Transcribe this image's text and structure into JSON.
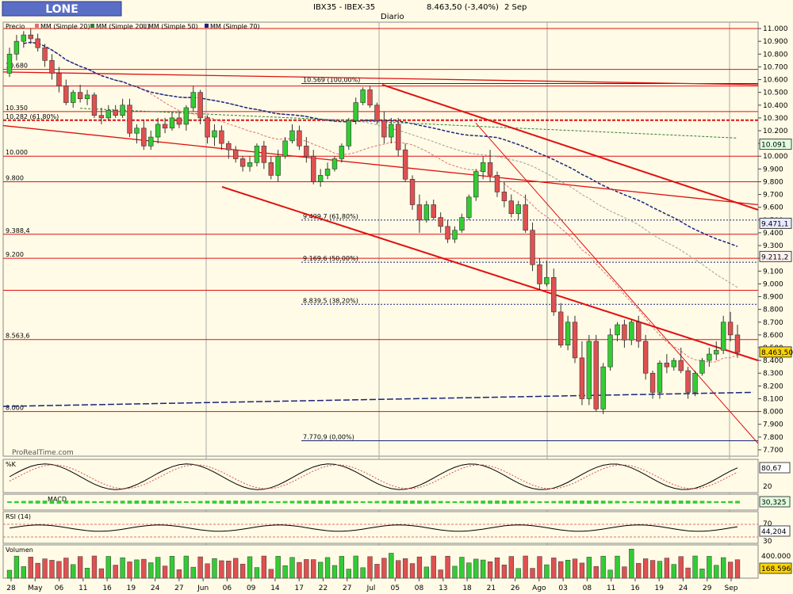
{
  "header": {
    "logo_text": "LONE",
    "title": "IBX35 - IBEX-35",
    "last_value": "8.463,50 (-3,40%)",
    "date": "2 Sep",
    "period": "Diario",
    "watermark": "ProRealTime.com"
  },
  "legend": {
    "price": "Precio",
    "ma20": "MM (Simple 20)",
    "ma200": "MM (Simple 200)",
    "ma50": "MM (Simple 50)",
    "ma70": "MM (Simple 70)"
  },
  "colors": {
    "background": "#fffbe6",
    "up_candle": "#33cc33",
    "down_candle": "#e05050",
    "trendline": "#e01010",
    "ma70": "#1a237e",
    "ma200": "#2e7d32",
    "ma50": "#9e9e9e",
    "ma20": "#e07070",
    "fib_line": "#1a237e"
  },
  "chart_data": {
    "type": "candlestick",
    "y_axis_ticks": [
      "11.000",
      "10.900",
      "10.800",
      "10.700",
      "10.600",
      "10.500",
      "10.400",
      "10.300",
      "10.200",
      "10.100",
      "10.000",
      "9.900",
      "9.800",
      "9.700",
      "9.600",
      "9.500",
      "9.400",
      "9.300",
      "9.200",
      "9.100",
      "9.000",
      "8.900",
      "8.800",
      "8.700",
      "8.600",
      "8.500",
      "8.400",
      "8.300",
      "8.200",
      "8.100",
      "8.000",
      "7.900",
      "7.800",
      "7.700"
    ],
    "ylim": [
      7650,
      11050
    ],
    "x_axis_labels": [
      "28",
      "May",
      "06",
      "11",
      "16",
      "19",
      "24",
      "27",
      "Jun",
      "06",
      "09",
      "14",
      "17",
      "22",
      "27",
      "Jul",
      "05",
      "08",
      "13",
      "18",
      "21",
      "26",
      "Ago",
      "03",
      "08",
      "11",
      "16",
      "19",
      "24",
      "29",
      "Sep"
    ],
    "horizontal_level_labels": [
      "10.680",
      "10.350",
      "10.282 (61,80%)",
      "10.000",
      "9.800",
      "9.388,4",
      "9.200",
      "8.563,6",
      "8.000"
    ],
    "fibonacci_labels": [
      "10.569 (100,00%)",
      "9.499,7 (61,80%)",
      "9.169,6 (50,00%)",
      "8.839,5 (38,20%)",
      "7.770,9 (0,00%)"
    ],
    "right_axis_badges": [
      "10.091",
      "9.471,1",
      "9.211,2",
      "8.463,50"
    ],
    "candles": [
      [
        10650,
        10850,
        10620,
        10800
      ],
      [
        10800,
        10950,
        10750,
        10900
      ],
      [
        10900,
        10980,
        10850,
        10950
      ],
      [
        10950,
        11000,
        10880,
        10920
      ],
      [
        10920,
        10960,
        10820,
        10850
      ],
      [
        10850,
        10880,
        10700,
        10750
      ],
      [
        10750,
        10800,
        10600,
        10650
      ],
      [
        10650,
        10700,
        10500,
        10550
      ],
      [
        10550,
        10600,
        10400,
        10420
      ],
      [
        10420,
        10520,
        10380,
        10500
      ],
      [
        10500,
        10560,
        10420,
        10450
      ],
      [
        10450,
        10520,
        10400,
        10480
      ],
      [
        10480,
        10500,
        10300,
        10320
      ],
      [
        10320,
        10380,
        10250,
        10300
      ],
      [
        10300,
        10400,
        10280,
        10360
      ],
      [
        10360,
        10400,
        10300,
        10320
      ],
      [
        10320,
        10450,
        10300,
        10400
      ],
      [
        10400,
        10450,
        10150,
        10180
      ],
      [
        10180,
        10250,
        10100,
        10220
      ],
      [
        10220,
        10280,
        10050,
        10080
      ],
      [
        10080,
        10200,
        10050,
        10150
      ],
      [
        10150,
        10300,
        10100,
        10250
      ],
      [
        10250,
        10300,
        10180,
        10220
      ],
      [
        10220,
        10340,
        10200,
        10300
      ],
      [
        10300,
        10350,
        10220,
        10250
      ],
      [
        10250,
        10400,
        10200,
        10380
      ],
      [
        10380,
        10550,
        10350,
        10500
      ],
      [
        10500,
        10520,
        10250,
        10300
      ],
      [
        10300,
        10320,
        10100,
        10150
      ],
      [
        10150,
        10250,
        10080,
        10200
      ],
      [
        10200,
        10240,
        10050,
        10100
      ],
      [
        10100,
        10120,
        9980,
        10050
      ],
      [
        10050,
        10080,
        9950,
        9980
      ],
      [
        9980,
        10000,
        9880,
        9920
      ],
      [
        9920,
        10000,
        9880,
        9950
      ],
      [
        9950,
        10100,
        9920,
        10080
      ],
      [
        10080,
        10120,
        9900,
        9950
      ],
      [
        9950,
        10000,
        9820,
        9850
      ],
      [
        9850,
        10050,
        9800,
        10000
      ],
      [
        10000,
        10150,
        9980,
        10120
      ],
      [
        10120,
        10250,
        10100,
        10200
      ],
      [
        10200,
        10240,
        10050,
        10080
      ],
      [
        10080,
        10150,
        9950,
        10000
      ],
      [
        10000,
        10050,
        9780,
        9800
      ],
      [
        9800,
        9900,
        9760,
        9850
      ],
      [
        9850,
        9950,
        9820,
        9900
      ],
      [
        9900,
        10000,
        9880,
        9980
      ],
      [
        9980,
        10100,
        9950,
        10080
      ],
      [
        10080,
        10300,
        10050,
        10280
      ],
      [
        10280,
        10460,
        10250,
        10420
      ],
      [
        10420,
        10540,
        10400,
        10520
      ],
      [
        10520,
        10550,
        10380,
        10400
      ],
      [
        10400,
        10420,
        10250,
        10280
      ],
      [
        10280,
        10350,
        10100,
        10150
      ],
      [
        10150,
        10300,
        10100,
        10250
      ],
      [
        10250,
        10300,
        10000,
        10050
      ],
      [
        10050,
        10100,
        9800,
        9820
      ],
      [
        9820,
        9850,
        9580,
        9620
      ],
      [
        9620,
        9700,
        9400,
        9500
      ],
      [
        9500,
        9650,
        9480,
        9620
      ],
      [
        9620,
        9660,
        9500,
        9520
      ],
      [
        9520,
        9560,
        9400,
        9450
      ],
      [
        9450,
        9500,
        9320,
        9350
      ],
      [
        9350,
        9450,
        9320,
        9420
      ],
      [
        9420,
        9550,
        9400,
        9520
      ],
      [
        9520,
        9700,
        9500,
        9680
      ],
      [
        9680,
        9900,
        9650,
        9880
      ],
      [
        9880,
        10000,
        9820,
        9950
      ],
      [
        9950,
        10050,
        9800,
        9850
      ],
      [
        9850,
        9880,
        9680,
        9720
      ],
      [
        9720,
        9800,
        9600,
        9650
      ],
      [
        9650,
        9700,
        9520,
        9550
      ],
      [
        9550,
        9650,
        9500,
        9620
      ],
      [
        9620,
        9700,
        9400,
        9420
      ],
      [
        9420,
        9480,
        9100,
        9150
      ],
      [
        9150,
        9200,
        8950,
        9000
      ],
      [
        9000,
        9180,
        8980,
        9050
      ],
      [
        9050,
        9120,
        8750,
        8780
      ],
      [
        8780,
        8850,
        8500,
        8520
      ],
      [
        8520,
        8750,
        8480,
        8700
      ],
      [
        8700,
        8750,
        8380,
        8420
      ],
      [
        8420,
        8550,
        8050,
        8100
      ],
      [
        8100,
        8600,
        8050,
        8550
      ],
      [
        8550,
        8600,
        8000,
        8020
      ],
      [
        8020,
        8380,
        7980,
        8350
      ],
      [
        8350,
        8650,
        8320,
        8600
      ],
      [
        8600,
        8700,
        8550,
        8680
      ],
      [
        8680,
        8720,
        8500,
        8560
      ],
      [
        8560,
        8720,
        8520,
        8700
      ],
      [
        8700,
        8750,
        8500,
        8550
      ],
      [
        8550,
        8600,
        8250,
        8300
      ],
      [
        8300,
        8320,
        8100,
        8150
      ],
      [
        8150,
        8400,
        8100,
        8380
      ],
      [
        8380,
        8450,
        8300,
        8350
      ],
      [
        8350,
        8420,
        8320,
        8400
      ],
      [
        8400,
        8500,
        8300,
        8320
      ],
      [
        8320,
        8350,
        8100,
        8150
      ],
      [
        8150,
        8320,
        8120,
        8300
      ],
      [
        8300,
        8420,
        8280,
        8400
      ],
      [
        8400,
        8500,
        8350,
        8450
      ],
      [
        8450,
        8550,
        8400,
        8480
      ],
      [
        8480,
        8750,
        8450,
        8700
      ],
      [
        8700,
        8780,
        8550,
        8600
      ],
      [
        8600,
        8680,
        8420,
        8463
      ]
    ],
    "oscillators": {
      "stochastic_label": "%K",
      "stochastic_badges": [
        "80,67",
        "20"
      ],
      "macd_label": "MACD",
      "macd_badge": "30,325",
      "rsi_label": "RSI (14)",
      "rsi_badges": [
        "70",
        "44,204",
        "30"
      ],
      "volume_label": "Volumen",
      "volume_badges": [
        "400.000",
        "168.596"
      ]
    }
  }
}
